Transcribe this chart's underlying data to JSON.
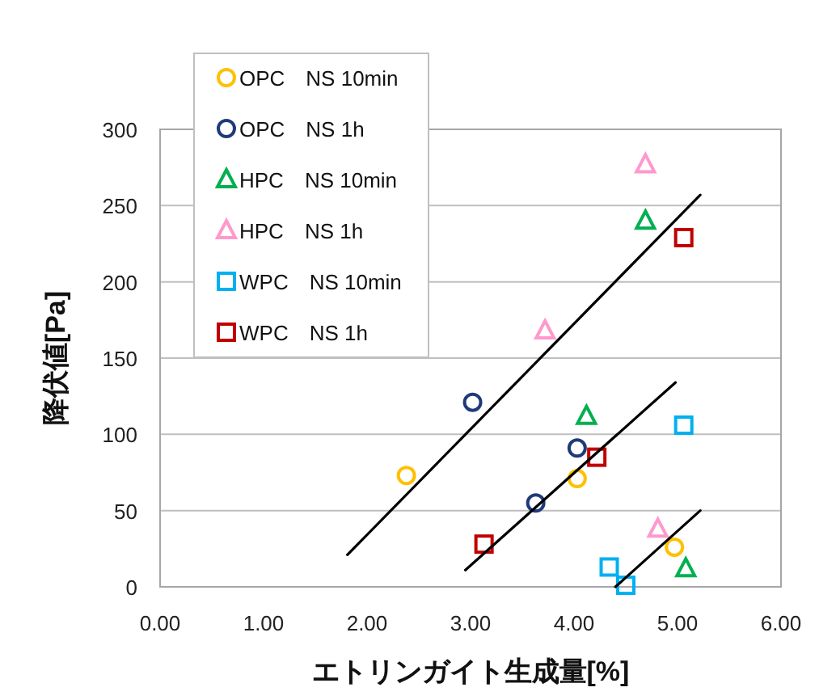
{
  "chart_data": {
    "type": "scatter",
    "xlabel": "エトリンガイト生成量[%]",
    "ylabel": "降伏値[Pa]",
    "xlim": [
      0,
      6
    ],
    "xticks": [
      {
        "value": 0,
        "label": "0.00"
      },
      {
        "value": 1,
        "label": "1.00"
      },
      {
        "value": 2,
        "label": "2.00"
      },
      {
        "value": 3,
        "label": "3.00"
      },
      {
        "value": 4,
        "label": "4.00"
      },
      {
        "value": 5,
        "label": "5.00"
      },
      {
        "value": 6,
        "label": "6.00"
      }
    ],
    "ylim": [
      0,
      300
    ],
    "yticks": [
      0,
      50,
      100,
      150,
      200,
      250,
      300
    ],
    "grid": "y",
    "legend": "top left",
    "series": [
      {
        "name": "OPC　NS 10min",
        "color": "#ffc000",
        "marker": "circle",
        "x": [
          2.38,
          4.03,
          4.97
        ],
        "values": [
          73,
          71,
          26
        ]
      },
      {
        "name": "OPC　NS 1h",
        "color": "#1f3a7a",
        "marker": "circle",
        "x": [
          3.02,
          4.03,
          3.63
        ],
        "values": [
          121,
          91,
          55
        ]
      },
      {
        "name": "HPC　NS 10min",
        "color": "#00b050",
        "marker": "triangle",
        "x": [
          4.69,
          4.12,
          5.08
        ],
        "values": [
          240,
          112,
          12
        ]
      },
      {
        "name": "HPC　NS 1h",
        "color": "#ff99cc",
        "marker": "triangle",
        "x": [
          4.69,
          3.72,
          4.81
        ],
        "values": [
          277,
          168,
          38
        ]
      },
      {
        "name": "WPC　NS 10min",
        "color": "#00b0f0",
        "marker": "square",
        "x": [
          5.06,
          4.34,
          4.5
        ],
        "values": [
          106,
          13,
          1
        ]
      },
      {
        "name": "WPC　NS 1h",
        "color": "#c00000",
        "marker": "square",
        "x": [
          5.06,
          4.22,
          3.13
        ],
        "values": [
          229,
          85,
          28
        ]
      },
      {
        "type": "line",
        "color": "#000000",
        "marker": "none",
        "x": [
          1.81,
          5.22
        ],
        "values": [
          21,
          257
        ]
      },
      {
        "type": "line",
        "color": "#000000",
        "marker": "none",
        "x": [
          2.95,
          4.98
        ],
        "values": [
          11,
          134
        ]
      },
      {
        "type": "line",
        "color": "#000000",
        "marker": "none",
        "x": [
          4.4,
          5.22
        ],
        "values": [
          0,
          50
        ]
      }
    ]
  }
}
